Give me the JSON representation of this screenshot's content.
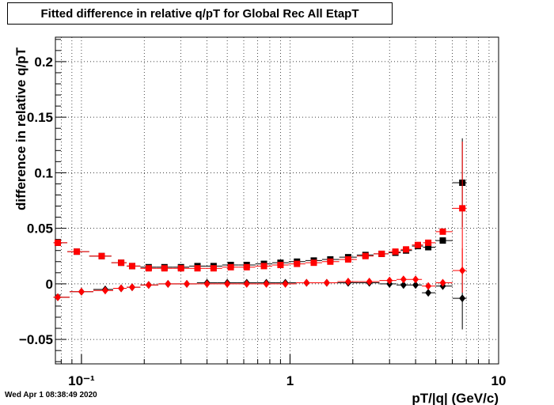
{
  "chart_data": {
    "type": "scatter",
    "title": "Fitted difference in relative q/pT for Global Rec All EtapT",
    "xlabel": "pT/|q| (GeV/c)",
    "ylabel": "difference in relative q/pT",
    "x_scale": "log",
    "xlim": [
      0.075,
      10
    ],
    "ylim": [
      -0.072,
      0.222
    ],
    "grid": true,
    "x_ticks": [
      {
        "value": 0.1,
        "label": "10⁻¹"
      },
      {
        "value": 1,
        "label": "1"
      },
      {
        "value": 10,
        "label": "10"
      }
    ],
    "y_ticks": [
      {
        "value": -0.05,
        "label": "−0.05"
      },
      {
        "value": 0,
        "label": "0"
      },
      {
        "value": 0.05,
        "label": "0.05"
      },
      {
        "value": 0.1,
        "label": "0.1"
      },
      {
        "value": 0.15,
        "label": "0.15"
      },
      {
        "value": 0.2,
        "label": "0.2"
      }
    ],
    "series": [
      {
        "color": "#000000",
        "marker": "square",
        "points": [
          [
            0.077,
            0.037
          ],
          [
            0.095,
            0.029
          ],
          [
            0.125,
            0.025
          ],
          [
            0.155,
            0.019
          ],
          [
            0.175,
            0.016
          ],
          [
            0.21,
            0.015
          ],
          [
            0.25,
            0.015
          ],
          [
            0.3,
            0.015
          ],
          [
            0.36,
            0.016
          ],
          [
            0.43,
            0.016
          ],
          [
            0.52,
            0.017
          ],
          [
            0.62,
            0.017
          ],
          [
            0.75,
            0.018
          ],
          [
            0.9,
            0.019
          ],
          [
            1.08,
            0.02
          ],
          [
            1.3,
            0.021
          ],
          [
            1.56,
            0.022
          ],
          [
            1.9,
            0.024
          ],
          [
            2.3,
            0.026
          ],
          [
            2.75,
            0.027
          ],
          [
            3.2,
            0.028
          ],
          [
            3.6,
            0.03
          ],
          [
            4.1,
            0.034
          ],
          [
            4.6,
            0.033
          ],
          [
            5.4,
            0.039
          ],
          [
            6.7,
            0.091
          ]
        ],
        "error_last": 0.04
      },
      {
        "color": "#000000",
        "marker": "diamond",
        "points": [
          [
            0.077,
            -0.012
          ],
          [
            0.1,
            -0.007
          ],
          [
            0.13,
            -0.005
          ],
          [
            0.155,
            -0.004
          ],
          [
            0.175,
            -0.003
          ],
          [
            0.21,
            -0.001
          ],
          [
            0.26,
            0.0
          ],
          [
            0.32,
            0.0
          ],
          [
            0.4,
            0.001
          ],
          [
            0.5,
            0.001
          ],
          [
            0.62,
            0.001
          ],
          [
            0.77,
            0.001
          ],
          [
            0.95,
            0.001
          ],
          [
            1.2,
            0.001
          ],
          [
            1.5,
            0.001
          ],
          [
            1.9,
            0.001
          ],
          [
            2.4,
            0.001
          ],
          [
            3.0,
            0.0
          ],
          [
            3.5,
            -0.001
          ],
          [
            4.0,
            -0.001
          ],
          [
            4.6,
            -0.008
          ],
          [
            5.4,
            -0.002
          ],
          [
            6.7,
            -0.013
          ]
        ],
        "error_last": 0.028
      },
      {
        "color": "#ff0000",
        "marker": "square",
        "points": [
          [
            0.077,
            0.037
          ],
          [
            0.095,
            0.029
          ],
          [
            0.125,
            0.025
          ],
          [
            0.155,
            0.019
          ],
          [
            0.175,
            0.016
          ],
          [
            0.21,
            0.014
          ],
          [
            0.25,
            0.014
          ],
          [
            0.3,
            0.014
          ],
          [
            0.36,
            0.014
          ],
          [
            0.43,
            0.014
          ],
          [
            0.52,
            0.015
          ],
          [
            0.62,
            0.015
          ],
          [
            0.75,
            0.016
          ],
          [
            0.9,
            0.017
          ],
          [
            1.08,
            0.018
          ],
          [
            1.3,
            0.019
          ],
          [
            1.56,
            0.02
          ],
          [
            1.9,
            0.022
          ],
          [
            2.3,
            0.025
          ],
          [
            2.75,
            0.027
          ],
          [
            3.2,
            0.029
          ],
          [
            3.6,
            0.031
          ],
          [
            4.1,
            0.035
          ],
          [
            4.6,
            0.037
          ],
          [
            5.4,
            0.047
          ],
          [
            6.7,
            0.068
          ]
        ],
        "error_last": 0.06
      },
      {
        "color": "#ff0000",
        "marker": "diamond",
        "points": [
          [
            0.077,
            -0.012
          ],
          [
            0.1,
            -0.007
          ],
          [
            0.13,
            -0.006
          ],
          [
            0.155,
            -0.004
          ],
          [
            0.175,
            -0.003
          ],
          [
            0.21,
            -0.001
          ],
          [
            0.26,
            0.0
          ],
          [
            0.32,
            0.0
          ],
          [
            0.4,
            0.0
          ],
          [
            0.5,
            0.0
          ],
          [
            0.62,
            0.0
          ],
          [
            0.77,
            0.0
          ],
          [
            0.95,
            0.0
          ],
          [
            1.2,
            0.001
          ],
          [
            1.5,
            0.001
          ],
          [
            1.9,
            0.002
          ],
          [
            2.4,
            0.002
          ],
          [
            3.0,
            0.003
          ],
          [
            3.5,
            0.004
          ],
          [
            4.0,
            0.004
          ],
          [
            4.6,
            -0.002
          ],
          [
            5.4,
            0.001
          ],
          [
            6.7,
            0.012
          ]
        ],
        "error_last": 0.02
      }
    ]
  },
  "timestamp": "Wed Apr  1 08:38:49 2020"
}
